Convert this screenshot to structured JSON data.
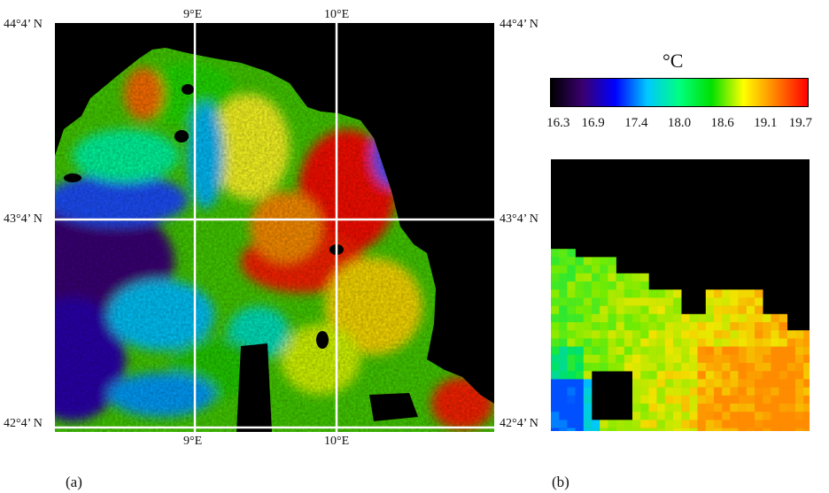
{
  "panel_a": {
    "label": "(a)",
    "lat_top": "44°4’ N",
    "lat_mid": "43°4’ N",
    "lat_bottom": "42°4’ N",
    "lon_left": "9°E",
    "lon_right": "10°E"
  },
  "panel_b": {
    "label": "(b)"
  },
  "colorbar": {
    "unit": "°C",
    "ticks": [
      "16.3",
      "16.9",
      "17.4",
      "18.0",
      "18.6",
      "19.1",
      "19.7"
    ],
    "min": 16.3,
    "max": 19.7,
    "colors": [
      "#000000",
      "#3a0070",
      "#0000ff",
      "#00c8ff",
      "#00ff80",
      "#00e000",
      "#ffff00",
      "#ff8000",
      "#ff0000"
    ]
  }
}
